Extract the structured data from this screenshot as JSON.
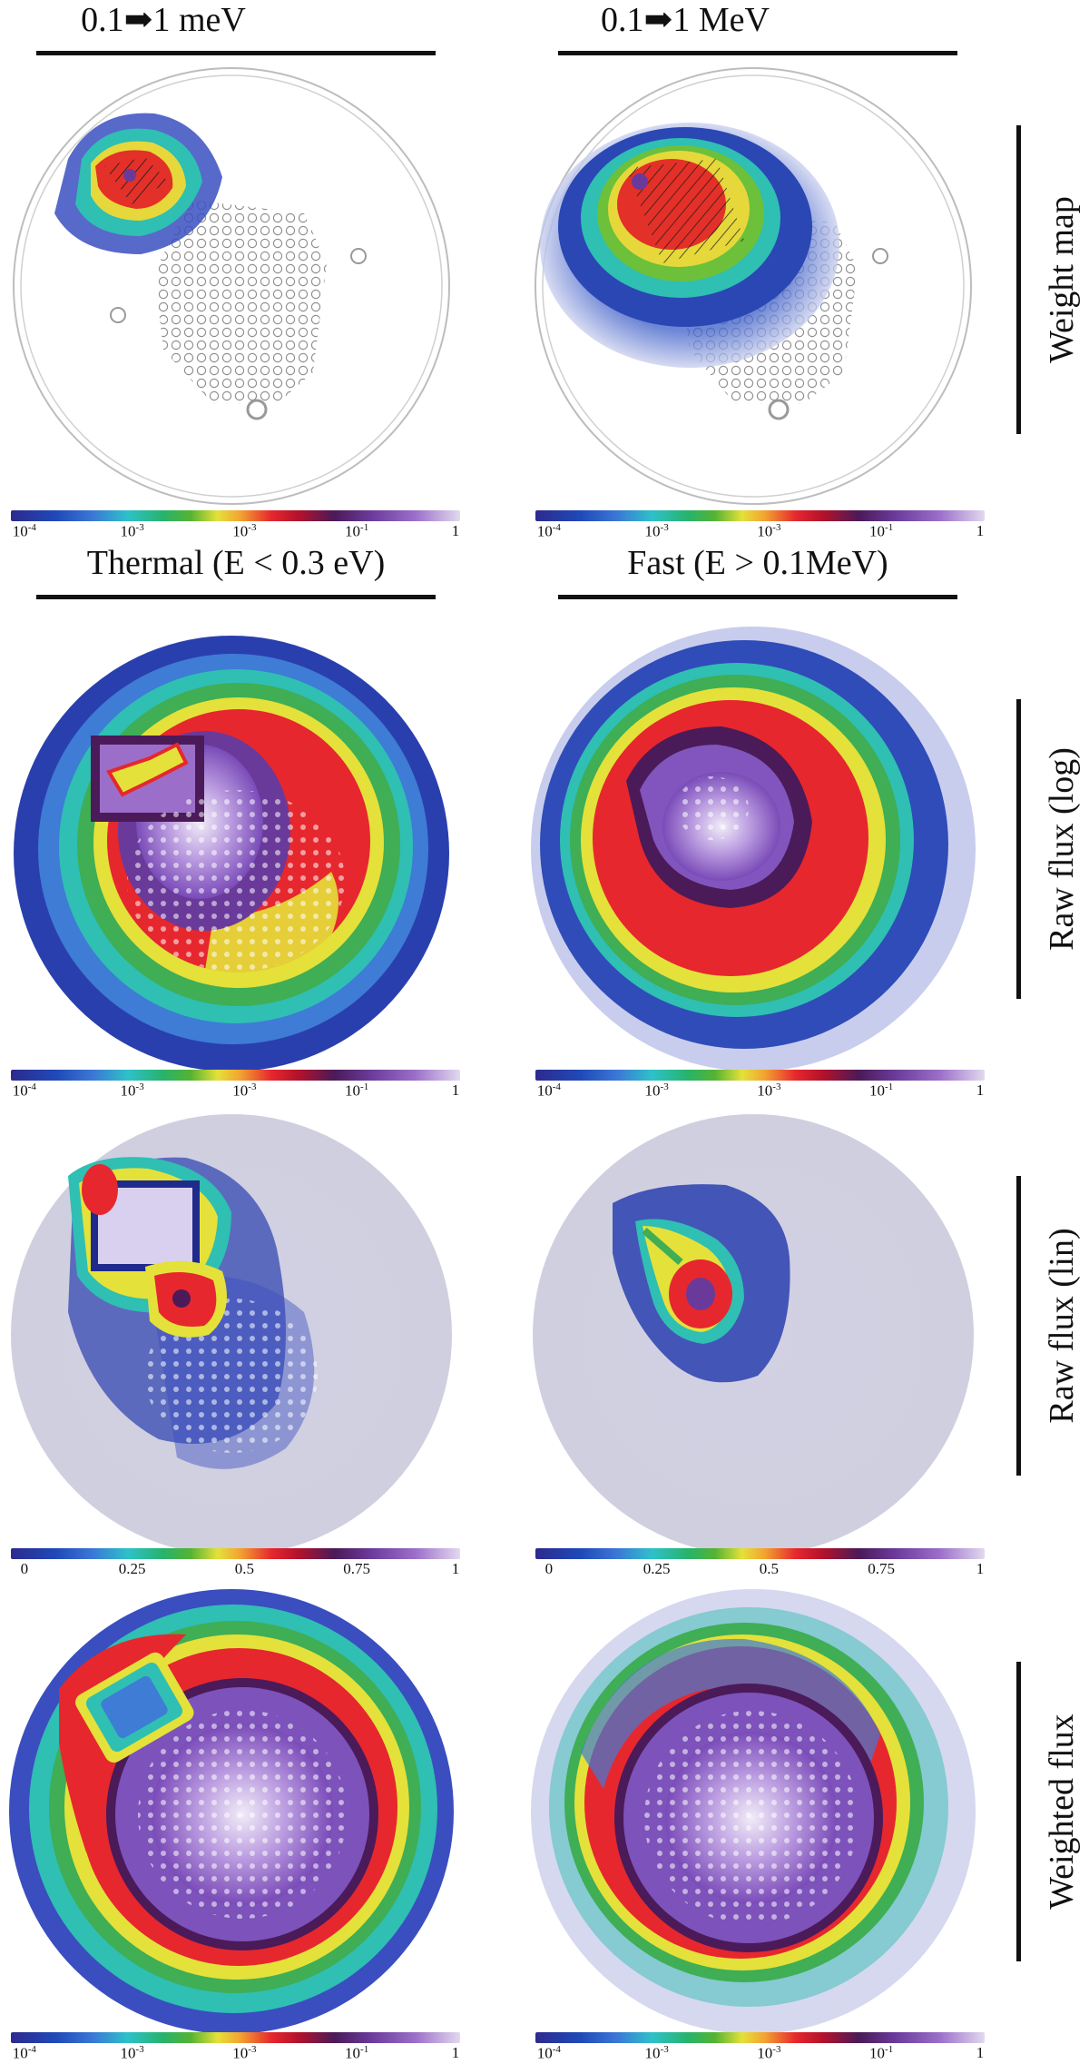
{
  "columns": {
    "top_left": "0.1➡1 meV",
    "top_right": "0.1➡1 MeV",
    "mid_left": "Thermal (E < 0.3 eV)",
    "mid_right": "Fast (E > 0.1MeV)"
  },
  "rows": {
    "weight_map": "Weight map",
    "raw_log": "Raw flux (log)",
    "raw_lin": "Raw flux (lin)",
    "weighted": "Weighted flux"
  },
  "colorbars": {
    "log": {
      "t0": "10",
      "e0": "-4",
      "t1": "10",
      "e1": "-3",
      "t2": "10",
      "e2": "-3",
      "t3": "10",
      "e3": "-1",
      "t4": "1"
    },
    "lin": {
      "t0": "0",
      "t1": "0.25",
      "t2": "0.5",
      "t3": "0.75",
      "t4": "1"
    }
  },
  "colors": {
    "low": "#2d2a8e",
    "mid": "#e4e13a",
    "high": "#e6272e",
    "top": "#9b6fc9",
    "ink": "#111111"
  }
}
